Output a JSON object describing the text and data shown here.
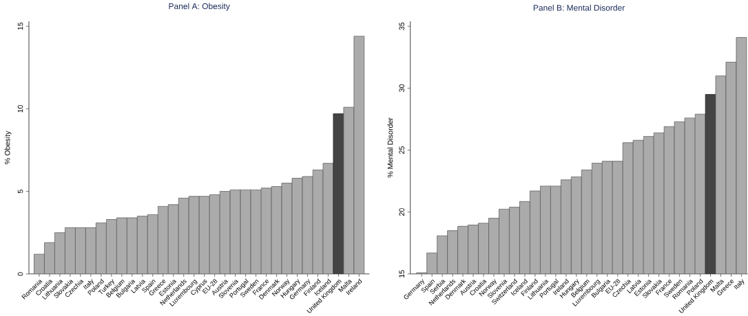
{
  "chart_data": [
    {
      "type": "bar",
      "title": "Panel A: Obesity",
      "ylabel": "% Obesity",
      "categories": [
        "Romania",
        "Croatia",
        "Lithuania",
        "Slovakia",
        "Czechia",
        "Italy",
        "Poland",
        "Turkey",
        "Belgium",
        "Bulgaria",
        "Latvia",
        "Spain",
        "Greece",
        "Estonia",
        "Netherlands",
        "Luxembourg",
        "Cyprus",
        "EU-28",
        "Austria",
        "Slovenia",
        "Portugal",
        "Sweden",
        "France",
        "Denmark",
        "Norway",
        "Hungary",
        "Germany",
        "Finland",
        "Iceland",
        "United Kingdom",
        "Malta",
        "Ireland"
      ],
      "values": [
        1.2,
        1.9,
        2.5,
        2.8,
        2.8,
        2.8,
        3.1,
        3.3,
        3.4,
        3.4,
        3.5,
        3.6,
        4.1,
        4.2,
        4.6,
        4.7,
        4.7,
        4.8,
        5.0,
        5.1,
        5.1,
        5.1,
        5.2,
        5.3,
        5.5,
        5.8,
        5.9,
        6.3,
        6.7,
        9.7,
        10.1,
        14.4
      ],
      "colors": [
        "#ababab",
        "#ababab",
        "#ababab",
        "#ababab",
        "#ababab",
        "#ababab",
        "#ababab",
        "#ababab",
        "#ababab",
        "#ababab",
        "#ababab",
        "#ababab",
        "#ababab",
        "#ababab",
        "#ababab",
        "#ababab",
        "#ababab",
        "#ababab",
        "#ababab",
        "#ababab",
        "#ababab",
        "#ababab",
        "#ababab",
        "#ababab",
        "#ababab",
        "#ababab",
        "#ababab",
        "#ababab",
        "#ababab",
        "#444444",
        "#ababab",
        "#ababab"
      ],
      "ylim": [
        0,
        15.3
      ],
      "yticks": [
        0,
        5,
        10,
        15
      ]
    },
    {
      "type": "bar",
      "title": "Panel B: Mental Disorder",
      "ylabel": "% Mental Disorder",
      "categories": [
        "Germany",
        "Spain",
        "Serbia",
        "Netherlands",
        "Denmark",
        "Austria",
        "Croatia",
        "Norway",
        "Slovenia",
        "Switzerland",
        "Iceland",
        "Finland",
        "Lithuania",
        "Portugal",
        "Ireland",
        "Hungary",
        "Belgium",
        "Luxembourg",
        "Bulgaria",
        "EU-28",
        "Czechia",
        "Latvia",
        "Estonia",
        "Slovakia",
        "France",
        "Sweden",
        "Romania",
        "Poland",
        "United Kingdom",
        "Malta",
        "Greece",
        "Italy"
      ],
      "values": [
        15.1,
        16.7,
        18.1,
        18.5,
        18.85,
        18.95,
        19.1,
        19.5,
        20.25,
        20.4,
        20.85,
        21.7,
        22.1,
        22.1,
        22.6,
        22.85,
        23.4,
        23.95,
        24.1,
        24.1,
        25.6,
        25.8,
        26.1,
        26.4,
        26.9,
        27.3,
        27.6,
        27.9,
        29.5,
        31.0,
        32.1,
        34.1
      ],
      "colors": [
        "#ababab",
        "#ababab",
        "#ababab",
        "#ababab",
        "#ababab",
        "#ababab",
        "#ababab",
        "#ababab",
        "#ababab",
        "#ababab",
        "#ababab",
        "#ababab",
        "#ababab",
        "#ababab",
        "#ababab",
        "#ababab",
        "#ababab",
        "#ababab",
        "#ababab",
        "#ababab",
        "#ababab",
        "#ababab",
        "#ababab",
        "#ababab",
        "#ababab",
        "#ababab",
        "#ababab",
        "#ababab",
        "#444444",
        "#ababab",
        "#ababab",
        "#ababab"
      ],
      "ylim": [
        15,
        35.4
      ],
      "yticks": [
        15,
        20,
        25,
        30,
        35
      ]
    }
  ]
}
